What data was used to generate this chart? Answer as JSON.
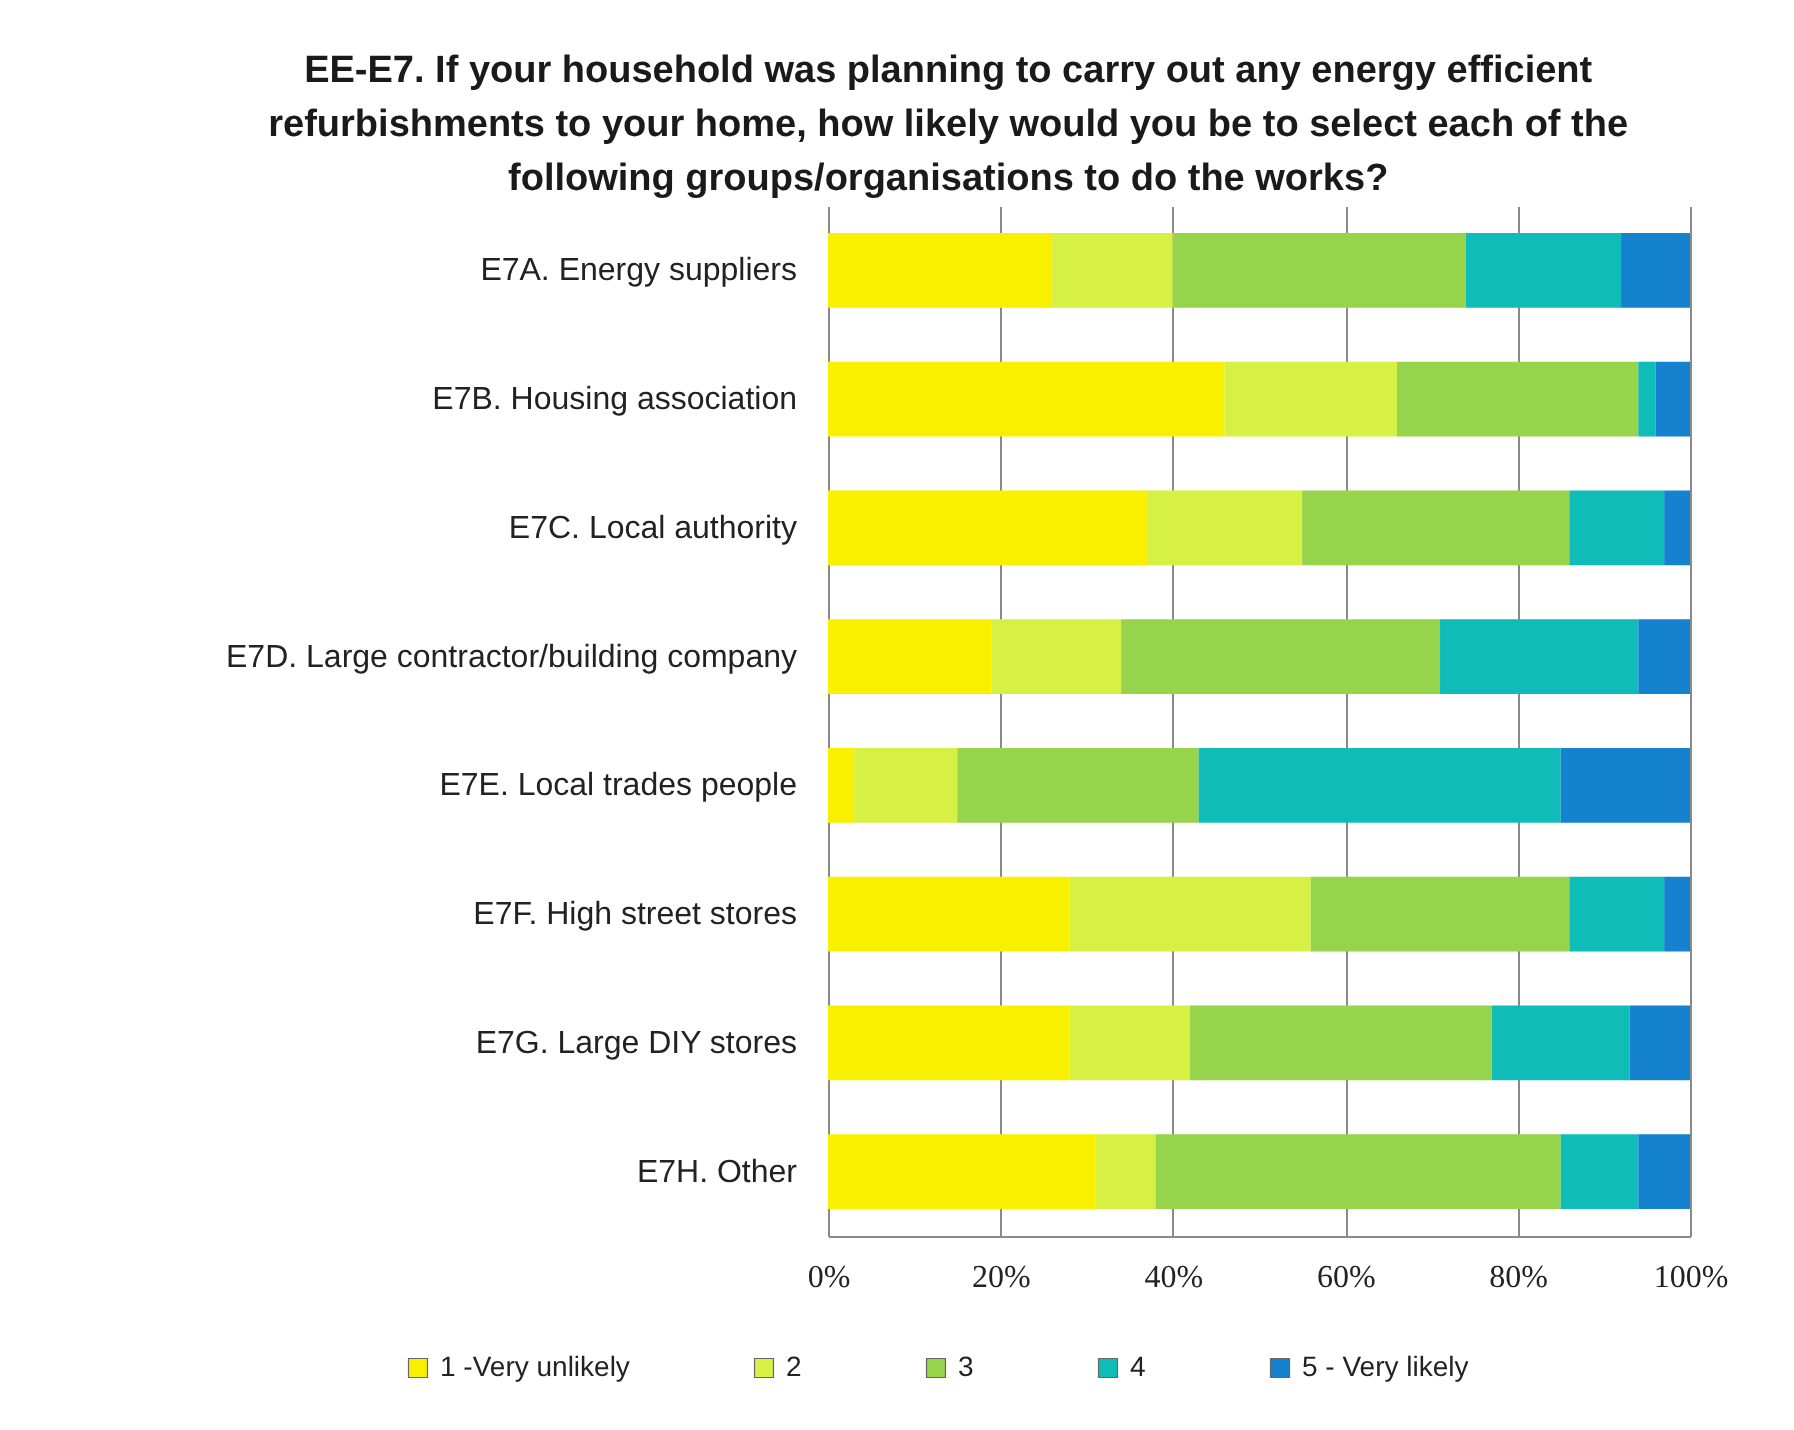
{
  "chart_data": {
    "type": "bar",
    "orientation": "horizontal",
    "stacked": true,
    "title": "EE-E7. If your household was planning to carry out any energy efficient refurbishments to your home, how likely would you be to select each of the following groups/organisations to do the works?",
    "categories": [
      "E7A. Energy suppliers",
      "E7B. Housing association",
      "E7C. Local authority",
      "E7D. Large contractor/building company",
      "E7E. Local trades people",
      "E7F. High street stores",
      "E7G. Large DIY stores",
      "E7H. Other"
    ],
    "series": [
      {
        "name": "1 -Very unlikely",
        "color": "#f9f000",
        "values": [
          26,
          46,
          37,
          19,
          3,
          28,
          28,
          31
        ]
      },
      {
        "name": "2",
        "color": "#d6f044",
        "values": [
          14,
          20,
          18,
          15,
          12,
          28,
          14,
          7
        ]
      },
      {
        "name": "3",
        "color": "#96d44c",
        "values": [
          34,
          28,
          31,
          37,
          28,
          30,
          35,
          47
        ]
      },
      {
        "name": "4",
        "color": "#10bcb8",
        "values": [
          18,
          2,
          11,
          23,
          42,
          11,
          16,
          9
        ]
      },
      {
        "name": "5 - Very likely",
        "color": "#1582cf",
        "values": [
          8,
          4,
          3,
          6,
          15,
          3,
          7,
          6
        ]
      }
    ],
    "xlim": [
      0,
      100
    ],
    "xticks": [
      {
        "value": 0,
        "label": "0%"
      },
      {
        "value": 20,
        "label": "20%"
      },
      {
        "value": 40,
        "label": "40%"
      },
      {
        "value": 60,
        "label": "60%"
      },
      {
        "value": 80,
        "label": "80%"
      },
      {
        "value": 100,
        "label": "100%"
      }
    ],
    "grid": "x",
    "legend": "bottom"
  }
}
